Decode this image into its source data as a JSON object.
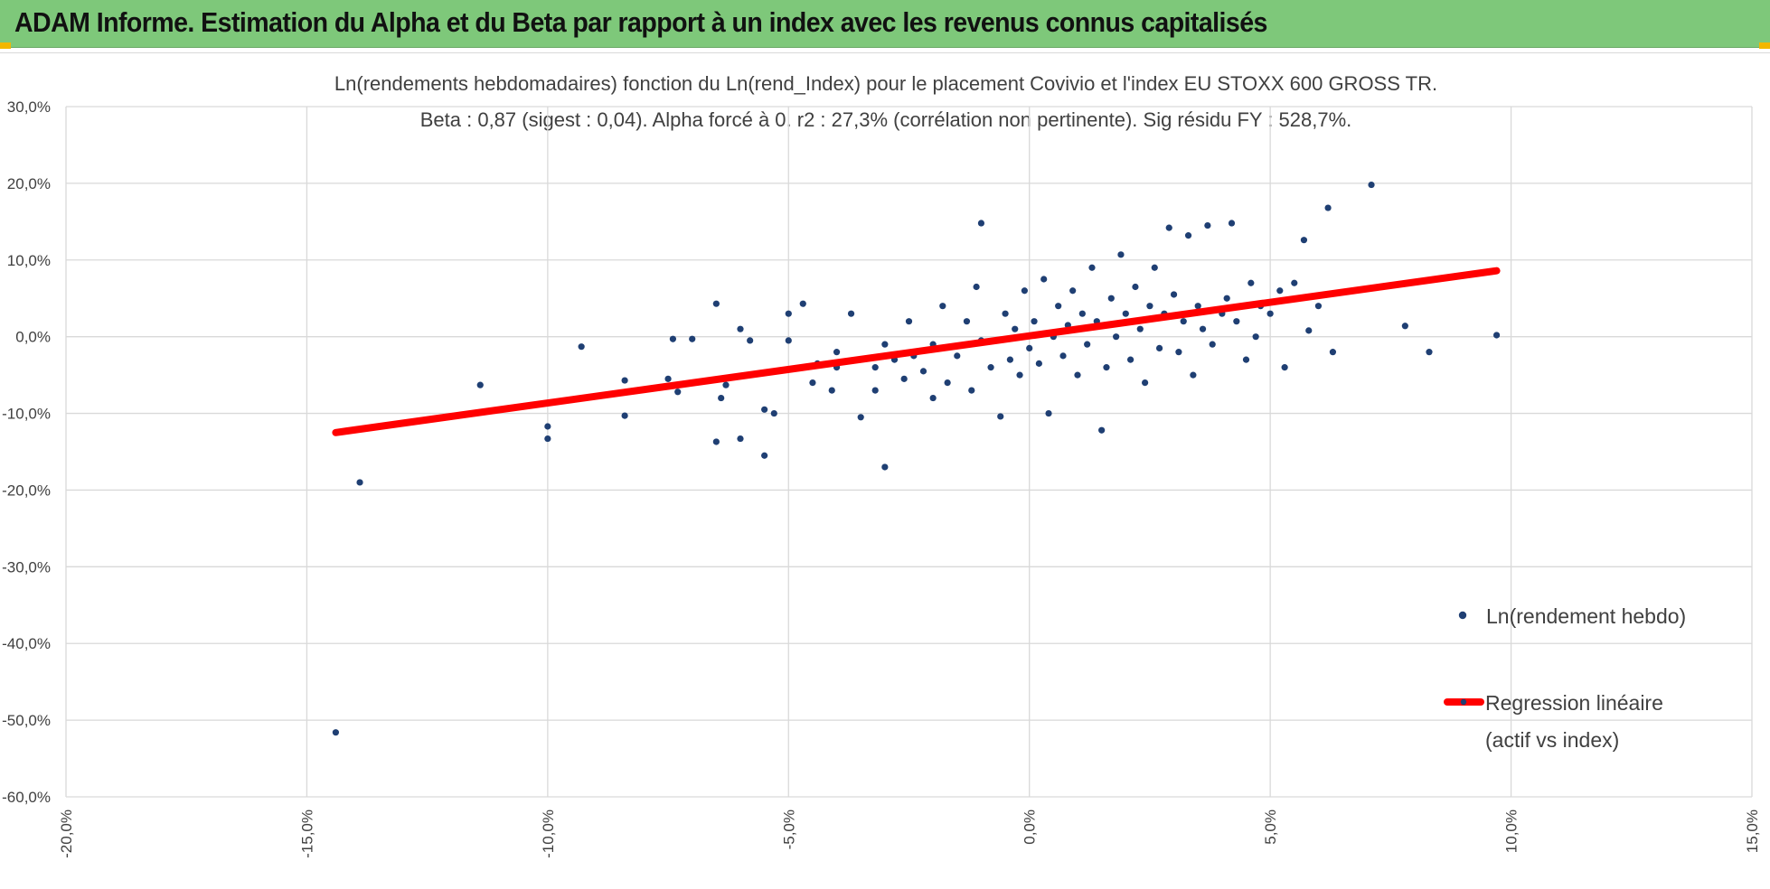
{
  "header": {
    "title": "ADAM Informe. Estimation du Alpha et du Beta par rapport à un index avec les revenus connus capitalisés"
  },
  "colors": {
    "header_bg": "#7ec87a",
    "point": "#1f3f73",
    "regression": "#ff0000",
    "grid": "#d9d9d9",
    "corner_accent": "#f2b700"
  },
  "chart_data": {
    "type": "scatter",
    "title_line1": "Ln(rendements hebdomadaires) fonction du Ln(rend_Index) pour le placement Covivio et l'index EU STOXX 600 GROSS TR.",
    "title_line2": "Beta : 0,87 (sigest : 0,04). Alpha forcé à 0. r2 : 27,3% (corrélation non pertinente). Sig résidu FY : 528,7%.",
    "xlim": [
      -0.2,
      0.15
    ],
    "ylim": [
      -0.6,
      0.3
    ],
    "x_ticks": [
      -0.2,
      -0.15,
      -0.1,
      -0.05,
      0.0,
      0.05,
      0.1,
      0.15
    ],
    "x_tick_labels": [
      "-20,0%",
      "-15,0%",
      "-10,0%",
      "-5,0%",
      "0,0%",
      "5,0%",
      "10,0%",
      "15,0%"
    ],
    "y_ticks": [
      0.3,
      0.2,
      0.1,
      0.0,
      -0.1,
      -0.2,
      -0.3,
      -0.4,
      -0.5,
      -0.6
    ],
    "y_tick_labels": [
      "30,0%",
      "20,0%",
      "10,0%",
      "0,0%",
      "-10,0%",
      "-20,0%",
      "-30,0%",
      "-40,0%",
      "-50,0%",
      "-60,0%"
    ],
    "grid": true,
    "legend_position": "right",
    "series": [
      {
        "name": "Ln(rendement hebdo)",
        "kind": "scatter",
        "points": [
          [
            -0.144,
            -0.516
          ],
          [
            -0.139,
            -0.19
          ],
          [
            -0.114,
            -0.063
          ],
          [
            -0.1,
            -0.117
          ],
          [
            -0.1,
            -0.133
          ],
          [
            -0.093,
            -0.013
          ],
          [
            -0.084,
            -0.057
          ],
          [
            -0.084,
            -0.103
          ],
          [
            -0.075,
            -0.055
          ],
          [
            -0.074,
            -0.003
          ],
          [
            -0.073,
            -0.072
          ],
          [
            -0.07,
            -0.003
          ],
          [
            -0.065,
            0.043
          ],
          [
            -0.065,
            -0.137
          ],
          [
            -0.064,
            -0.08
          ],
          [
            -0.063,
            -0.063
          ],
          [
            -0.06,
            0.01
          ],
          [
            -0.06,
            -0.133
          ],
          [
            -0.058,
            -0.005
          ],
          [
            -0.055,
            -0.095
          ],
          [
            -0.055,
            -0.155
          ],
          [
            -0.053,
            -0.1
          ],
          [
            -0.05,
            0.03
          ],
          [
            -0.05,
            -0.005
          ],
          [
            -0.047,
            0.043
          ],
          [
            -0.045,
            -0.06
          ],
          [
            -0.044,
            -0.035
          ],
          [
            -0.041,
            -0.07
          ],
          [
            -0.04,
            -0.02
          ],
          [
            -0.04,
            -0.04
          ],
          [
            -0.037,
            0.03
          ],
          [
            -0.035,
            -0.105
          ],
          [
            -0.032,
            -0.04
          ],
          [
            -0.032,
            -0.07
          ],
          [
            -0.03,
            -0.17
          ],
          [
            -0.03,
            -0.01
          ],
          [
            -0.028,
            -0.03
          ],
          [
            -0.026,
            -0.055
          ],
          [
            -0.025,
            0.02
          ],
          [
            -0.024,
            -0.025
          ],
          [
            -0.022,
            -0.045
          ],
          [
            -0.02,
            -0.01
          ],
          [
            -0.02,
            -0.08
          ],
          [
            -0.018,
            0.04
          ],
          [
            -0.017,
            -0.06
          ],
          [
            -0.015,
            -0.025
          ],
          [
            -0.013,
            0.02
          ],
          [
            -0.012,
            -0.07
          ],
          [
            -0.011,
            0.065
          ],
          [
            -0.01,
            -0.005
          ],
          [
            -0.01,
            0.148
          ],
          [
            -0.008,
            -0.04
          ],
          [
            -0.006,
            -0.104
          ],
          [
            -0.005,
            0.03
          ],
          [
            -0.004,
            -0.03
          ],
          [
            -0.003,
            0.01
          ],
          [
            -0.002,
            -0.05
          ],
          [
            -0.001,
            0.06
          ],
          [
            0.0,
            -0.015
          ],
          [
            0.001,
            0.02
          ],
          [
            0.002,
            -0.035
          ],
          [
            0.003,
            0.075
          ],
          [
            0.004,
            -0.1
          ],
          [
            0.005,
            0.0
          ],
          [
            0.006,
            0.04
          ],
          [
            0.007,
            -0.025
          ],
          [
            0.008,
            0.015
          ],
          [
            0.009,
            0.06
          ],
          [
            0.01,
            -0.05
          ],
          [
            0.011,
            0.03
          ],
          [
            0.012,
            -0.01
          ],
          [
            0.013,
            0.09
          ],
          [
            0.014,
            0.02
          ],
          [
            0.015,
            -0.122
          ],
          [
            0.016,
            -0.04
          ],
          [
            0.017,
            0.05
          ],
          [
            0.018,
            0.0
          ],
          [
            0.019,
            0.107
          ],
          [
            0.02,
            0.03
          ],
          [
            0.021,
            -0.03
          ],
          [
            0.022,
            0.065
          ],
          [
            0.023,
            0.01
          ],
          [
            0.024,
            -0.06
          ],
          [
            0.025,
            0.04
          ],
          [
            0.026,
            0.09
          ],
          [
            0.027,
            -0.015
          ],
          [
            0.028,
            0.03
          ],
          [
            0.029,
            0.142
          ],
          [
            0.03,
            0.055
          ],
          [
            0.031,
            -0.02
          ],
          [
            0.032,
            0.02
          ],
          [
            0.033,
            0.132
          ],
          [
            0.034,
            -0.05
          ],
          [
            0.035,
            0.04
          ],
          [
            0.036,
            0.01
          ],
          [
            0.037,
            0.145
          ],
          [
            0.038,
            -0.01
          ],
          [
            0.04,
            0.03
          ],
          [
            0.041,
            0.05
          ],
          [
            0.042,
            0.148
          ],
          [
            0.043,
            0.02
          ],
          [
            0.045,
            -0.03
          ],
          [
            0.046,
            0.07
          ],
          [
            0.047,
            0.0
          ],
          [
            0.048,
            0.04
          ],
          [
            0.05,
            0.03
          ],
          [
            0.052,
            0.06
          ],
          [
            0.053,
            -0.04
          ],
          [
            0.055,
            0.07
          ],
          [
            0.057,
            0.126
          ],
          [
            0.058,
            0.008
          ],
          [
            0.06,
            0.04
          ],
          [
            0.062,
            0.168
          ],
          [
            0.063,
            -0.02
          ],
          [
            0.071,
            0.198
          ],
          [
            0.078,
            0.014
          ],
          [
            0.083,
            -0.02
          ],
          [
            0.097,
            0.002
          ]
        ]
      },
      {
        "name": "Regression linéaire (actif vs index)",
        "kind": "line",
        "points": [
          [
            -0.144,
            -0.125
          ],
          [
            0.097,
            0.086
          ]
        ]
      }
    ],
    "legend": {
      "scatter_label": "Ln(rendement hebdo)",
      "line_label_1": "Regression linéaire",
      "line_label_2": "(actif vs index)"
    }
  }
}
